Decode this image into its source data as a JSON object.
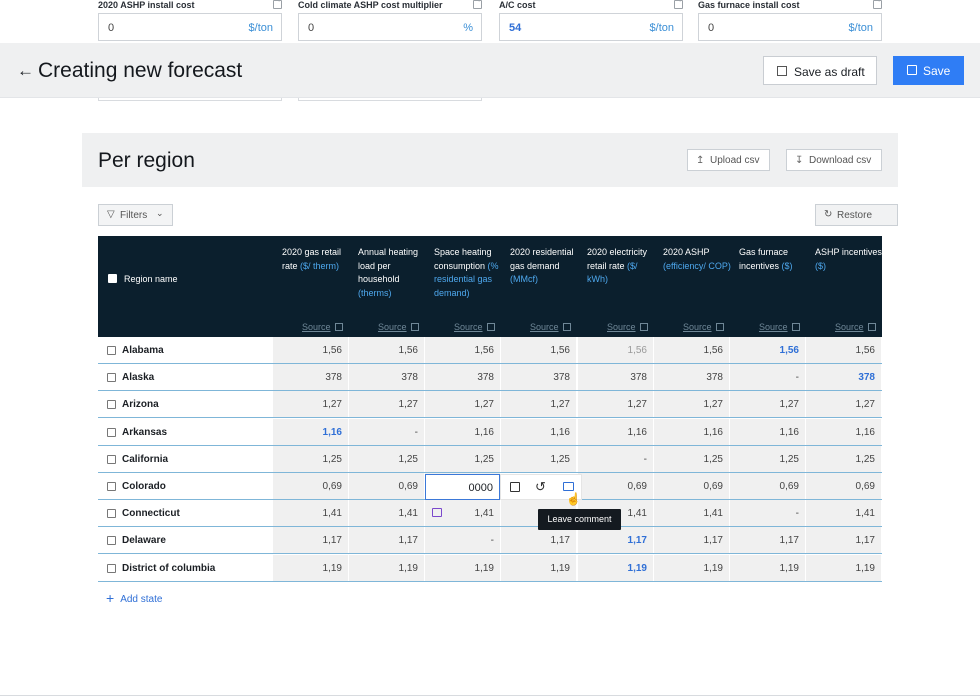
{
  "cost_fields": [
    {
      "label": "2020 ASHP install cost",
      "value": "0",
      "unit": "$/ton"
    },
    {
      "label": "Cold climate ASHP cost multiplier",
      "value": "0",
      "unit": "%"
    },
    {
      "label": "A/C cost",
      "value": "54",
      "unit": "$/ton"
    },
    {
      "label": "Gas furnace install cost",
      "value": "0",
      "unit": "$/ton"
    }
  ],
  "header": {
    "back_icon": "arrow-left-icon",
    "title": "Creating new forecast",
    "save_draft_label": "Save as draft",
    "save_label": "Save"
  },
  "panel": {
    "title": "Per region",
    "upload_label": "Upload csv",
    "download_label": "Download csv"
  },
  "toolbar": {
    "filters_label": "Filters",
    "restore_label": "Restore"
  },
  "table": {
    "region_header": "Region name",
    "source_label": "Source",
    "columns": [
      {
        "main": "2020 gas retail rate ",
        "unit": "($/ therm)"
      },
      {
        "main": "Annual heating load per household ",
        "unit": "(therms)"
      },
      {
        "main": "Space heating consumption ",
        "unit": "(% residential gas demand)"
      },
      {
        "main": "2020 residential gas demand ",
        "unit": "(MMcf)"
      },
      {
        "main": "2020 electricity retail rate ",
        "unit": "($/ kWh)"
      },
      {
        "main": "2020 ASHP ",
        "unit": "(efficiency/ COP)"
      },
      {
        "main": "Gas furnace incentives ",
        "unit": "($)"
      },
      {
        "main": "ASHP incentives ",
        "unit": "($)"
      }
    ],
    "rows": [
      {
        "name": "Alabama",
        "cells": [
          "1,56",
          "1,56",
          "1,56",
          "1,56",
          "1,56",
          "1,56",
          "1,56",
          "1,56"
        ]
      },
      {
        "name": "Alaska",
        "cells": [
          "378",
          "378",
          "378",
          "378",
          "378",
          "378",
          "-",
          "378"
        ]
      },
      {
        "name": "Arizona",
        "cells": [
          "1,27",
          "1,27",
          "1,27",
          "1,27",
          "1,27",
          "1,27",
          "1,27",
          "1,27"
        ]
      },
      {
        "name": "Arkansas",
        "cells": [
          "1,16",
          "-",
          "1,16",
          "1,16",
          "1,16",
          "1,16",
          "1,16",
          "1,16"
        ]
      },
      {
        "name": "California",
        "cells": [
          "1,25",
          "1,25",
          "1,25",
          "1,25",
          "-",
          "1,25",
          "1,25",
          "1,25"
        ]
      },
      {
        "name": "Colorado",
        "cells": [
          "0,69",
          "0,69",
          "0000",
          "",
          "0,69",
          "0,69",
          "0,69",
          "0,69"
        ]
      },
      {
        "name": "Connecticut",
        "cells": [
          "1,41",
          "1,41",
          "1,41",
          "",
          "1,41",
          "1,41",
          "-",
          "1,41"
        ]
      },
      {
        "name": "Delaware",
        "cells": [
          "1,17",
          "1,17",
          "-",
          "1,17",
          "1,17",
          "1,17",
          "1,17",
          "1,17"
        ]
      },
      {
        "name": "District of columbia",
        "cells": [
          "1,19",
          "1,19",
          "1,19",
          "1,19",
          "1,19",
          "1,19",
          "1,19",
          "1,19"
        ]
      }
    ]
  },
  "tooltip": "Leave comment",
  "add_state_label": "Add state",
  "colors": {
    "accent": "#2f7df5",
    "table_header": "#0b1f2d",
    "highlight_value": "#2f6fd6",
    "comment": "#7b48cc"
  }
}
